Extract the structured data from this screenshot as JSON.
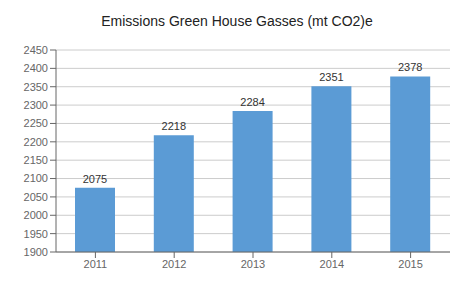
{
  "chart_data": {
    "type": "bar",
    "title": "Emissions Green House Gasses (mt CO2)e",
    "categories": [
      "2011",
      "2012",
      "2013",
      "2014",
      "2015"
    ],
    "values": [
      2075,
      2218,
      2284,
      2351,
      2378
    ],
    "color": "#5B9BD5",
    "ylim": [
      1900,
      2450
    ],
    "yticks": [
      1900,
      1950,
      2000,
      2050,
      2100,
      2150,
      2200,
      2250,
      2300,
      2350,
      2400,
      2450
    ],
    "grid": true,
    "data_labels": true
  }
}
